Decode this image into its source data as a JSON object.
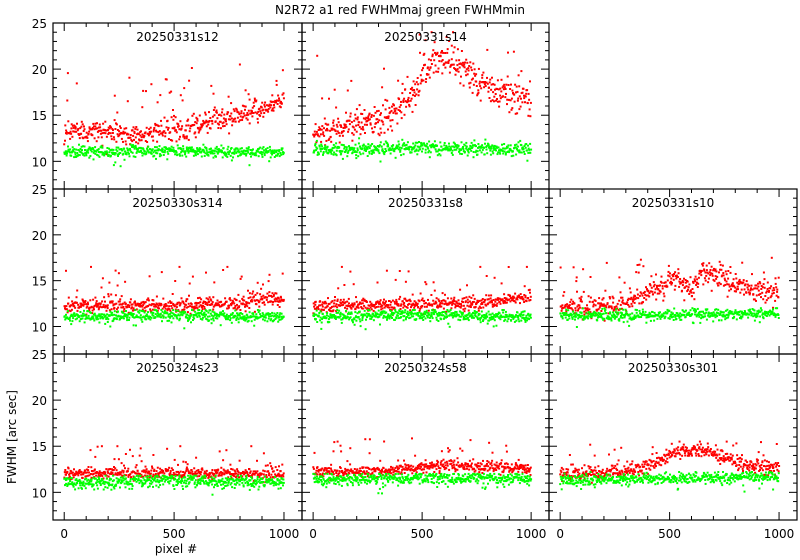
{
  "title": "N2R72 a1 red FWHMmaj green FWHMmin",
  "xlabel": "pixel #",
  "ylabel": "FWHM [arc sec]",
  "chart_data": {
    "type": "scatter",
    "xlim": [
      -51,
      1082
    ],
    "ylim": [
      7,
      25
    ],
    "x_ticks": [
      0,
      500,
      1000
    ],
    "x_tick_labels": [
      "0",
      "500",
      "1000"
    ],
    "y_ticks": [
      10,
      15,
      20,
      25
    ],
    "y_tick_labels": [
      "10",
      "15",
      "20",
      "25"
    ],
    "colors": {
      "red": "#ff0000",
      "green": "#00ff00"
    },
    "note": "Each series is summarized by its trend (x in pixels, y in arcsec) and scatter about it; ~1000 points per series",
    "panels": [
      {
        "title": "20250331s12",
        "row": 0,
        "col": 0,
        "series": [
          {
            "name": "FWHMmaj",
            "color": "#ff0000",
            "x": [
              0,
              200,
              300,
              500,
              600,
              800,
              1000
            ],
            "y": [
              13.5,
              13.2,
              12.8,
              13.5,
              14,
              15,
              16.5
            ],
            "spread": 0.8,
            "outlier_max": 20.5
          },
          {
            "name": "FWHMmin",
            "color": "#00ff00",
            "x": [
              0,
              500,
              1000
            ],
            "y": [
              11,
              11.1,
              11
            ],
            "spread": 0.3,
            "outlier_max": 11.8
          }
        ]
      },
      {
        "title": "20250331s14",
        "row": 0,
        "col": 1,
        "series": [
          {
            "name": "FWHMmaj",
            "color": "#ff0000",
            "x": [
              0,
              200,
              350,
              450,
              550,
              650,
              800,
              1000
            ],
            "y": [
              13,
              14,
              15,
              17,
              21,
              20.5,
              18,
              16.5
            ],
            "spread": 1.1,
            "outlier_max": 24
          },
          {
            "name": "FWHMmin",
            "color": "#00ff00",
            "x": [
              0,
              500,
              1000
            ],
            "y": [
              11.2,
              11.5,
              11.3
            ],
            "spread": 0.35,
            "outlier_max": 12.5
          }
        ]
      },
      {
        "title": "20250330s314",
        "row": 1,
        "col": 0,
        "series": [
          {
            "name": "FWHMmaj",
            "color": "#ff0000",
            "x": [
              0,
              500,
              800,
              1000
            ],
            "y": [
              12.3,
              12.3,
              12.5,
              13.2
            ],
            "spread": 0.5,
            "outlier_max": 16.5
          },
          {
            "name": "FWHMmin",
            "color": "#00ff00",
            "x": [
              0,
              500,
              1000
            ],
            "y": [
              11,
              11.3,
              11
            ],
            "spread": 0.3,
            "outlier_max": 11.8
          }
        ]
      },
      {
        "title": "20250331s8",
        "row": 1,
        "col": 1,
        "series": [
          {
            "name": "FWHMmaj",
            "color": "#ff0000",
            "x": [
              0,
              500,
              800,
              1000
            ],
            "y": [
              12.3,
              12.4,
              12.7,
              13.2
            ],
            "spread": 0.5,
            "outlier_max": 16.5
          },
          {
            "name": "FWHMmin",
            "color": "#00ff00",
            "x": [
              0,
              500,
              1000
            ],
            "y": [
              11,
              11.3,
              11
            ],
            "spread": 0.3,
            "outlier_max": 11.8
          }
        ]
      },
      {
        "title": "20250331s10",
        "row": 1,
        "col": 2,
        "series": [
          {
            "name": "FWHMmaj",
            "color": "#ff0000",
            "x": [
              0,
              300,
              400,
              520,
              600,
              650,
              800,
              1000
            ],
            "y": [
              12,
              12.3,
              13.5,
              15.5,
              14,
              16,
              14.5,
              13.5
            ],
            "spread": 0.8,
            "outlier_max": 17.5
          },
          {
            "name": "FWHMmin",
            "color": "#00ff00",
            "x": [
              0,
              500,
              1000
            ],
            "y": [
              11.2,
              11.3,
              11.5
            ],
            "spread": 0.3,
            "outlier_max": 12
          }
        ]
      },
      {
        "title": "20250324s23",
        "row": 2,
        "col": 0,
        "series": [
          {
            "name": "FWHMmaj",
            "color": "#ff0000",
            "x": [
              0,
              500,
              1000
            ],
            "y": [
              12,
              12.1,
              11.9
            ],
            "spread": 0.4,
            "outlier_max": 15
          },
          {
            "name": "FWHMmin",
            "color": "#00ff00",
            "x": [
              0,
              500,
              1000
            ],
            "y": [
              11,
              11.3,
              11.1
            ],
            "spread": 0.35,
            "outlier_max": 11.8
          }
        ]
      },
      {
        "title": "20250324s58",
        "row": 2,
        "col": 1,
        "series": [
          {
            "name": "FWHMmaj",
            "color": "#ff0000",
            "x": [
              0,
              300,
              600,
              1000
            ],
            "y": [
              12.2,
              12.3,
              13,
              12.5
            ],
            "spread": 0.4,
            "outlier_max": 16
          },
          {
            "name": "FWHMmin",
            "color": "#00ff00",
            "x": [
              0,
              500,
              1000
            ],
            "y": [
              11.3,
              11.6,
              11.5
            ],
            "spread": 0.3,
            "outlier_max": 12
          }
        ]
      },
      {
        "title": "20250330s301",
        "row": 2,
        "col": 2,
        "series": [
          {
            "name": "FWHMmaj",
            "color": "#ff0000",
            "x": [
              0,
              300,
              400,
              550,
              650,
              850,
              1000
            ],
            "y": [
              12,
              12.2,
              13,
              14.5,
              14.5,
              13,
              12.6
            ],
            "spread": 0.5,
            "outlier_max": 15.5
          },
          {
            "name": "FWHMmin",
            "color": "#00ff00",
            "x": [
              0,
              500,
              1000
            ],
            "y": [
              11.3,
              11.5,
              11.7
            ],
            "spread": 0.3,
            "outlier_max": 12.2
          }
        ]
      }
    ]
  }
}
